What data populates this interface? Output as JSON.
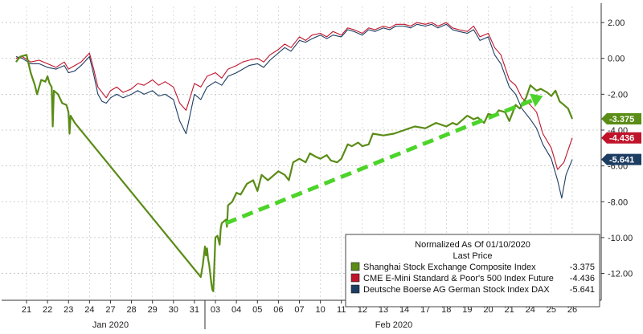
{
  "chart_data": {
    "type": "line",
    "legend": {
      "title": "Normalized As Of 01/10/2020",
      "subtitle": "Last Price",
      "placement": "bottom-right"
    },
    "x_days": [
      "21",
      "22",
      "23",
      "24",
      "27",
      "28",
      "29",
      "30",
      "31",
      "03",
      "04",
      "05",
      "06",
      "07",
      "10",
      "11",
      "12",
      "13",
      "14",
      "17",
      "18",
      "19",
      "20",
      "21",
      "24",
      "25",
      "26"
    ],
    "months": [
      {
        "label": "Jan 2020",
        "start_index": 0,
        "end_index": 8
      },
      {
        "label": "Feb 2020",
        "start_index": 9,
        "end_index": 26
      }
    ],
    "ylim": [
      -13.5,
      2.9
    ],
    "yticks": [
      2,
      0,
      -2,
      -4,
      -6,
      -8,
      -10,
      -12
    ],
    "ytick_labels": [
      "2.00",
      "0.00",
      "-2.00",
      "-4.00",
      "-6.00",
      "-8.00",
      "-10.00",
      "-12.00"
    ],
    "series": [
      {
        "name": "Shanghai Stock Exchange Composite Index",
        "last": "-3.375",
        "color": "#5a8c16",
        "width": 2.2,
        "x": [
          -0.5,
          -0.3,
          0,
          0.2,
          0.4,
          0.5,
          0.7,
          0.9,
          1.0,
          1.1,
          1.2,
          1.25,
          1.3,
          1.5,
          1.7,
          1.9,
          2.0,
          2.05,
          2.1,
          2.3,
          8.3,
          8.4,
          8.5,
          8.55,
          8.6,
          8.65,
          8.7,
          8.8,
          8.85,
          8.9,
          8.95,
          9.0,
          9.1,
          9.2,
          9.25,
          9.3,
          9.4,
          9.5,
          9.55,
          9.6,
          9.8,
          10.0,
          10.2,
          10.5,
          10.8,
          11.0,
          11.2,
          11.5,
          12.0,
          12.3,
          12.5,
          12.7,
          13.0,
          13.3,
          13.5,
          13.8,
          14.0,
          14.3,
          14.5,
          14.8,
          15.0,
          15.3,
          15.5,
          15.8,
          16.0,
          16.3,
          16.5,
          17.0,
          17.5,
          18.0,
          18.5,
          19.0,
          19.5,
          20.0,
          20.3,
          20.5,
          20.8,
          21.0,
          21.3,
          21.5,
          21.8,
          22.0,
          22.3,
          22.5,
          22.8,
          23.0,
          23.3,
          23.5,
          23.8,
          24.0,
          24.3,
          24.5,
          24.8,
          25.0,
          25.2,
          25.4,
          25.6,
          25.8,
          26.0
        ],
        "y": [
          -0.2,
          0.1,
          0.2,
          -0.8,
          -1.5,
          -2.0,
          -1.2,
          -1.3,
          -1.0,
          -1.4,
          -1.6,
          -3.8,
          -1.8,
          -2.0,
          -2.5,
          -2.6,
          -3.0,
          -4.2,
          -3.2,
          -3.6,
          -12.2,
          -11.5,
          -10.5,
          -11.0,
          -10.6,
          -11.2,
          -11.5,
          -12.5,
          -12.9,
          -13.0,
          -11.5,
          -10.0,
          -9.9,
          -10.4,
          -9.5,
          -9.2,
          -9.1,
          -9.0,
          -9.4,
          -8.2,
          -8.0,
          -7.5,
          -7.6,
          -7.0,
          -6.8,
          -7.4,
          -6.5,
          -6.8,
          -6.3,
          -6.5,
          -6.8,
          -5.8,
          -5.6,
          -5.8,
          -5.3,
          -5.5,
          -5.6,
          -5.4,
          -5.7,
          -5.8,
          -5.6,
          -4.8,
          -4.9,
          -4.7,
          -4.9,
          -4.8,
          -4.2,
          -4.3,
          -4.2,
          -4.0,
          -3.8,
          -3.9,
          -3.6,
          -3.8,
          -3.6,
          -3.7,
          -3.4,
          -3.2,
          -3.4,
          -3.3,
          -3.6,
          -3.1,
          -3.2,
          -2.9,
          -3.0,
          -3.5,
          -2.6,
          -2.8,
          -2.2,
          -1.5,
          -1.8,
          -1.7,
          -1.9,
          -2.1,
          -1.8,
          -2.4,
          -2.6,
          -2.8,
          -3.375
        ]
      },
      {
        "name": "CME E-Mini Standard & Poor's 500 Index Future",
        "last": "-4.436",
        "color": "#c0142b",
        "width": 1.1,
        "x": [
          -0.5,
          -0.2,
          0.2,
          0.6,
          1.0,
          1.4,
          1.8,
          2.0,
          2.3,
          2.6,
          3.0,
          3.2,
          3.4,
          3.6,
          3.8,
          4.0,
          4.3,
          4.6,
          5.0,
          5.3,
          5.6,
          6.0,
          6.3,
          6.6,
          7.0,
          7.3,
          7.6,
          8.0,
          8.3,
          8.6,
          9.0,
          9.3,
          9.6,
          10.0,
          10.3,
          10.6,
          11.0,
          11.3,
          11.6,
          12.0,
          12.3,
          12.6,
          13.0,
          13.3,
          13.6,
          14.0,
          14.3,
          14.6,
          15.0,
          15.3,
          15.6,
          16.0,
          16.3,
          16.6,
          17.0,
          17.3,
          17.6,
          18.0,
          18.3,
          18.6,
          19.0,
          19.3,
          19.6,
          20.0,
          20.3,
          20.6,
          21.0,
          21.3,
          21.6,
          22.0,
          22.3,
          22.6,
          23.0,
          23.3,
          23.6,
          24.0,
          24.3,
          24.6,
          25.0,
          25.3,
          25.6,
          26.0
        ],
        "y": [
          0.0,
          0.1,
          -0.2,
          -0.1,
          -0.3,
          -0.5,
          -0.2,
          -0.6,
          -0.4,
          -0.2,
          0.3,
          -0.6,
          -1.6,
          -1.9,
          -2.2,
          -1.8,
          -1.6,
          -1.9,
          -1.7,
          -1.4,
          -1.5,
          -1.2,
          -1.5,
          -1.3,
          -1.6,
          -2.5,
          -2.9,
          -1.4,
          -1.6,
          -1.0,
          -0.8,
          -1.1,
          -0.6,
          -0.4,
          -0.2,
          -0.1,
          0.0,
          -0.2,
          0.2,
          0.5,
          0.8,
          0.6,
          1.2,
          1.0,
          1.3,
          1.4,
          1.2,
          1.5,
          1.3,
          1.7,
          1.6,
          1.4,
          1.7,
          1.6,
          1.8,
          1.7,
          1.9,
          1.9,
          1.8,
          2.0,
          1.9,
          2.0,
          1.8,
          2.0,
          1.7,
          1.6,
          1.5,
          1.8,
          1.2,
          1.4,
          0.6,
          0.2,
          -1.2,
          -1.5,
          -2.2,
          -2.6,
          -3.0,
          -4.2,
          -5.0,
          -6.2,
          -5.8,
          -4.436
        ]
      },
      {
        "name": "Deutsche Boerse AG German Stock Index DAX",
        "last": "-5.641",
        "color": "#1d3d63",
        "width": 1.1,
        "x": [
          -0.5,
          -0.2,
          0.2,
          0.6,
          1.0,
          1.4,
          1.8,
          2.0,
          2.3,
          2.6,
          3.0,
          3.2,
          3.4,
          3.6,
          3.8,
          4.0,
          4.3,
          4.6,
          5.0,
          5.3,
          5.6,
          6.0,
          6.3,
          6.6,
          7.0,
          7.3,
          7.6,
          8.0,
          8.3,
          8.6,
          9.0,
          9.3,
          9.6,
          10.0,
          10.3,
          10.6,
          11.0,
          11.3,
          11.6,
          12.0,
          12.3,
          12.6,
          13.0,
          13.3,
          13.6,
          14.0,
          14.3,
          14.6,
          15.0,
          15.3,
          15.6,
          16.0,
          16.3,
          16.6,
          17.0,
          17.3,
          17.6,
          18.0,
          18.3,
          18.6,
          19.0,
          19.3,
          19.6,
          20.0,
          20.3,
          20.6,
          21.0,
          21.3,
          21.6,
          22.0,
          22.3,
          22.6,
          23.0,
          23.3,
          23.6,
          24.0,
          24.3,
          24.6,
          25.0,
          25.3,
          25.5,
          25.7,
          26.0
        ],
        "y": [
          0.1,
          0.0,
          -0.3,
          -0.3,
          -0.5,
          -0.6,
          -0.4,
          -0.8,
          -0.7,
          -0.4,
          0.1,
          -0.9,
          -2.0,
          -2.4,
          -2.5,
          -2.2,
          -2.0,
          -2.2,
          -2.0,
          -1.8,
          -2.0,
          -1.8,
          -2.1,
          -2.0,
          -2.3,
          -3.5,
          -4.2,
          -2.0,
          -2.3,
          -1.6,
          -1.3,
          -1.5,
          -1.0,
          -0.8,
          -0.6,
          -0.4,
          -0.3,
          -0.5,
          -0.1,
          0.3,
          0.6,
          0.4,
          1.0,
          0.9,
          1.1,
          1.3,
          1.1,
          1.3,
          1.2,
          1.6,
          1.5,
          1.3,
          1.6,
          1.5,
          1.7,
          1.6,
          1.8,
          1.8,
          1.7,
          1.9,
          1.8,
          1.9,
          1.7,
          1.9,
          1.6,
          1.5,
          1.4,
          1.6,
          1.0,
          1.2,
          0.2,
          -0.3,
          -1.6,
          -2.0,
          -2.8,
          -3.4,
          -3.9,
          -4.8,
          -5.6,
          -6.8,
          -7.8,
          -6.5,
          -5.641
        ]
      }
    ],
    "trendline": {
      "color": "#4dd42a",
      "x": [
        9.5,
        24.6
      ],
      "y": [
        -9.2,
        -2.1
      ]
    }
  }
}
